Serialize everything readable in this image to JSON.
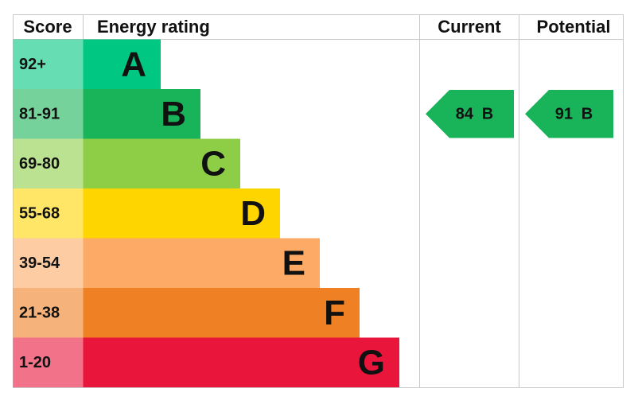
{
  "header": {
    "score": "Score",
    "rating": "Energy rating",
    "current": "Current",
    "potential": "Potential"
  },
  "bands": [
    {
      "score": "92+",
      "letter": "A",
      "color": "#00c781"
    },
    {
      "score": "81-91",
      "letter": "B",
      "color": "#19b459"
    },
    {
      "score": "69-80",
      "letter": "C",
      "color": "#8dce46"
    },
    {
      "score": "55-68",
      "letter": "D",
      "color": "#ffd500"
    },
    {
      "score": "39-54",
      "letter": "E",
      "color": "#fcaa65"
    },
    {
      "score": "21-38",
      "letter": "F",
      "color": "#ef8023"
    },
    {
      "score": "1-20",
      "letter": "G",
      "color": "#e9153b"
    }
  ],
  "current": {
    "value": 84,
    "letter": "B"
  },
  "potential": {
    "value": 91,
    "letter": "B"
  }
}
